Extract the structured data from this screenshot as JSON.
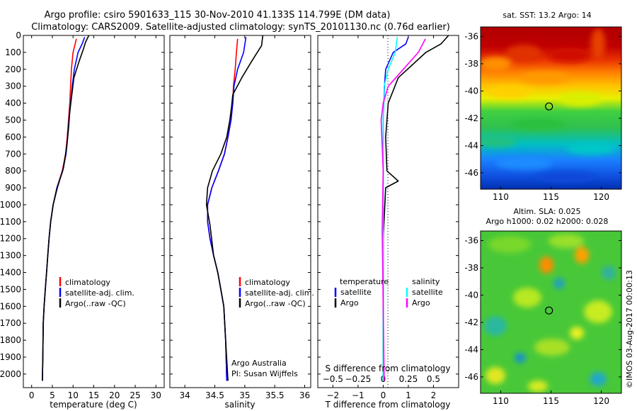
{
  "title_line1": "Argo profile: csiro 5901633_115 30-Nov-2010 41.133S 114.799E (DM data)",
  "title_line2": "Climatology: CARS2009. Satellite-adjusted climatology: synTS_20101130.nc (0.76d earlier)",
  "colors": {
    "climatology": "#ff0000",
    "satellite": "#0000ff",
    "argo": "#000000",
    "sat_salinity": "#00ffff",
    "argo_salinity": "#ff00ff"
  },
  "chart_data": [
    {
      "type": "line",
      "xlabel": "temperature (deg C)",
      "ylabel": "",
      "xlim": [
        -2,
        32
      ],
      "ylim": [
        2080,
        0
      ],
      "xticks": [
        0,
        5,
        10,
        15,
        20,
        25,
        30
      ],
      "yticks": [
        0,
        100,
        200,
        300,
        400,
        500,
        600,
        700,
        800,
        900,
        1000,
        1100,
        1200,
        1300,
        1400,
        1500,
        1600,
        1700,
        1800,
        1900,
        2000
      ],
      "legend": {
        "position": "lower-left",
        "entries": [
          "climatology",
          "satellite-adj. clim.",
          "Argo(..raw -QC)"
        ]
      },
      "series": [
        {
          "name": "climatology",
          "x": [
            10.8,
            10.5,
            10.0,
            9.6,
            9.4,
            9.2,
            8.9,
            8.6,
            8.2,
            7.4,
            6.1,
            5.2,
            4.6,
            4.2,
            3.9,
            3.6,
            3.3,
            3.0,
            2.8,
            2.7,
            2.6
          ],
          "y": [
            20,
            50,
            100,
            200,
            300,
            400,
            500,
            600,
            700,
            800,
            900,
            1000,
            1100,
            1200,
            1300,
            1400,
            1500,
            1600,
            1700,
            1900,
            2040
          ]
        },
        {
          "name": "satellite-adj. clim.",
          "x": [
            12.8,
            12.2,
            11.2,
            10.3,
            9.8,
            9.4,
            9.0,
            8.7,
            8.3,
            7.5,
            6.1,
            5.2,
            4.6,
            4.2,
            3.9,
            3.6,
            3.3,
            3.0,
            2.8,
            2.7,
            2.6
          ],
          "y": [
            10,
            50,
            100,
            200,
            300,
            400,
            500,
            600,
            700,
            800,
            900,
            1000,
            1100,
            1200,
            1300,
            1400,
            1500,
            1600,
            1700,
            1900,
            2040
          ]
        },
        {
          "name": "Argo(..raw -QC)",
          "x": [
            13.8,
            13.0,
            12.5,
            11.5,
            10.2,
            9.7,
            9.2,
            8.9,
            8.5,
            7.7,
            6.2,
            5.2,
            4.6,
            4.2,
            3.9,
            3.6,
            3.3,
            3.0,
            2.8,
            2.7,
            2.6
          ],
          "y": [
            0,
            40,
            80,
            150,
            250,
            350,
            450,
            550,
            650,
            780,
            900,
            1000,
            1100,
            1200,
            1300,
            1400,
            1500,
            1600,
            1700,
            1900,
            2040
          ]
        }
      ]
    },
    {
      "type": "line",
      "xlabel": "salinity",
      "ylabel": "",
      "xlim": [
        33.75,
        36.1
      ],
      "ylim": [
        2080,
        0
      ],
      "xticks": [
        34,
        34.5,
        35,
        35.5,
        36
      ],
      "xtick_labels": [
        "34",
        "34.5",
        "35",
        "35.5",
        "36"
      ],
      "legend": {
        "position": "lower-left",
        "entries": [
          "climatology",
          "satellite-adj. clim.",
          "Argo(..raw -QC)"
        ]
      },
      "annotations": [
        "Argo Australia",
        "PI: Susan Wijffels"
      ],
      "series": [
        {
          "name": "climatology",
          "x": [
            34.88,
            34.86,
            34.84,
            34.81,
            34.8,
            34.77,
            34.72,
            34.66,
            34.56,
            34.45,
            34.38,
            34.38,
            34.42,
            34.48,
            34.55,
            34.6,
            34.65,
            34.68,
            34.7
          ],
          "y": [
            20,
            100,
            200,
            300,
            400,
            500,
            600,
            700,
            800,
            900,
            1000,
            1100,
            1200,
            1300,
            1400,
            1500,
            1600,
            1800,
            2040
          ]
        },
        {
          "name": "satellite-adj. clim.",
          "x": [
            35.02,
            34.98,
            34.88,
            34.82,
            34.8,
            34.77,
            34.72,
            34.66,
            34.56,
            34.45,
            34.38,
            34.38,
            34.42,
            34.48,
            34.55,
            34.6,
            34.65,
            34.68,
            34.7
          ],
          "y": [
            10,
            100,
            200,
            300,
            400,
            500,
            600,
            700,
            800,
            900,
            1000,
            1100,
            1200,
            1300,
            1400,
            1500,
            1600,
            1800,
            2040
          ]
        },
        {
          "name": "Argo(..raw -QC)",
          "x": [
            35.3,
            35.28,
            35.12,
            34.95,
            34.8,
            34.78,
            34.75,
            34.7,
            34.6,
            34.46,
            34.38,
            34.36,
            34.42,
            34.48,
            34.55,
            34.6,
            34.65,
            34.68,
            34.72
          ],
          "y": [
            0,
            60,
            150,
            250,
            350,
            420,
            500,
            600,
            700,
            800,
            900,
            1000,
            1120,
            1300,
            1400,
            1500,
            1600,
            1800,
            2040
          ]
        }
      ]
    },
    {
      "type": "line",
      "xlabel": "T difference from climatology",
      "x2label": "S difference from climatology",
      "xlim": [
        -2.6,
        3.0
      ],
      "x2lim": [
        -0.65,
        0.75
      ],
      "ylim": [
        2080,
        0
      ],
      "xticks": [
        -2,
        -1,
        0,
        1,
        2
      ],
      "x2ticks": [
        -0.5,
        -0.25,
        0,
        0.25,
        0.5
      ],
      "x2tick_labels": [
        "−0.5",
        "−0.25",
        "0",
        "0.25",
        "0.5"
      ],
      "xtick_labels": [
        "−2",
        "−1",
        "0",
        "1",
        "2"
      ],
      "legend": {
        "position": "lower",
        "headers": [
          "temperature",
          "salinity"
        ],
        "entries": [
          "satellite",
          "Argo",
          "satellite",
          "Argo"
        ]
      },
      "series": [
        {
          "name": "temperature satellite",
          "axis": "T",
          "x": [
            1.0,
            0.9,
            0.4,
            0.1,
            0.05,
            0.0,
            0.0,
            0.0,
            0.0
          ],
          "y": [
            10,
            50,
            100,
            200,
            300,
            500,
            800,
            1200,
            2040
          ]
        },
        {
          "name": "temperature Argo",
          "axis": "T",
          "x": [
            2.6,
            2.3,
            1.7,
            0.6,
            0.2,
            0.1,
            0.15,
            0.6,
            0.1,
            0.0,
            0.0
          ],
          "y": [
            0,
            50,
            100,
            250,
            400,
            600,
            800,
            860,
            900,
            1200,
            2040
          ]
        },
        {
          "name": "salinity satellite",
          "axis": "S",
          "x": [
            0.14,
            0.12,
            0.05,
            0.01,
            0.0,
            0.0,
            0.0
          ],
          "y": [
            10,
            100,
            200,
            300,
            500,
            1200,
            2040
          ]
        },
        {
          "name": "salinity Argo",
          "axis": "S",
          "x": [
            0.42,
            0.35,
            0.2,
            0.05,
            0.0,
            -0.02,
            0.0,
            -0.01,
            0.01
          ],
          "y": [
            20,
            100,
            200,
            300,
            400,
            500,
            800,
            1150,
            2040
          ]
        }
      ]
    }
  ],
  "map_top": {
    "title": "sat. SST: 13.2 Argo: 14",
    "xticks": [
      110,
      115,
      120
    ],
    "yticks": [
      -36,
      -38,
      -40,
      -42,
      -44,
      -46
    ],
    "xtick_labels": [
      "110",
      "115",
      "120"
    ],
    "ytick_labels": [
      "-36",
      "-38",
      "-40",
      "-42",
      "-44",
      "-46"
    ],
    "marker": {
      "lon": 114.8,
      "lat": -41.13
    }
  },
  "map_bottom": {
    "title_line1": "Altim. SLA: 0.025",
    "title_line2": "Argo h1000: 0.02 h2000: 0.028",
    "xticks": [
      110,
      115,
      120
    ],
    "yticks": [
      -36,
      -38,
      -40,
      -42,
      -44,
      -46
    ],
    "xtick_labels": [
      "110",
      "115",
      "120"
    ],
    "ytick_labels": [
      "-36",
      "-38",
      "-40",
      "-42",
      "-44",
      "-46"
    ],
    "marker": {
      "lon": 114.8,
      "lat": -41.13
    }
  },
  "watermark": "©IMOS 03-Aug-2017 00:00:13"
}
